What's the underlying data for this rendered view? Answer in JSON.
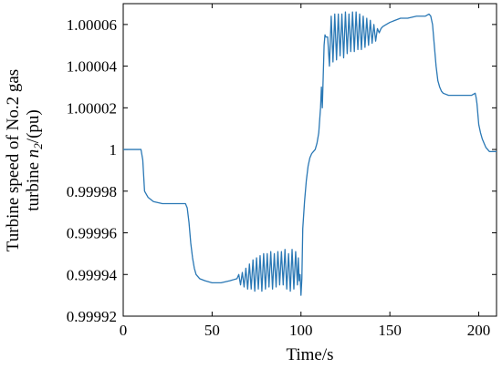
{
  "chart_data": {
    "type": "line",
    "xlabel": "Time/s",
    "ylabel_line1": "Turbine speed of No.2 gas",
    "ylabel_line2_prefix": "turbine ",
    "ylabel_var": "n",
    "ylabel_sub": "2",
    "ylabel_suffix": "/(pu)",
    "xlim": [
      0,
      210
    ],
    "ylim": [
      0.99992,
      1.00007
    ],
    "xticks": [
      0,
      50,
      100,
      150,
      200
    ],
    "xtick_labels": [
      "0",
      "50",
      "100",
      "150",
      "200"
    ],
    "yticks": [
      0.99992,
      0.99994,
      0.99996,
      0.99998,
      1.0,
      1.00002,
      1.00004,
      1.00006
    ],
    "ytick_labels": [
      "0.99992",
      "0.99994",
      "0.99996",
      "0.99998",
      "1",
      "1.00002",
      "1.00004",
      "1.00006"
    ],
    "grid": false,
    "line_color": "#2a78b5",
    "series": [
      {
        "x": [
          0,
          10,
          11,
          12,
          14,
          17,
          22,
          30,
          35,
          36,
          37,
          38,
          39,
          40,
          41,
          43,
          46,
          50,
          55,
          60,
          64,
          65,
          66,
          67,
          68,
          69,
          70,
          71,
          72,
          73,
          74,
          75,
          76,
          77,
          78,
          79,
          80,
          81,
          82,
          83,
          84,
          85,
          86,
          87,
          88,
          89,
          90,
          91,
          92,
          93,
          94,
          95,
          96,
          97,
          98,
          98.5,
          99,
          99.5,
          100,
          100.5,
          101,
          102,
          103,
          104,
          105,
          106,
          107,
          108,
          109,
          110,
          111,
          111.5,
          112,
          112.5,
          113,
          113.5,
          114,
          115,
          116,
          117,
          118,
          119,
          120,
          121,
          122,
          123,
          124,
          125,
          126,
          127,
          128,
          129,
          130,
          131,
          132,
          133,
          134,
          135,
          136,
          137,
          138,
          139,
          140,
          141,
          142,
          143,
          144,
          145,
          146,
          148,
          150,
          153,
          156,
          160,
          165,
          170,
          172,
          173,
          174,
          175,
          176,
          177,
          178,
          179,
          180,
          183,
          187,
          192,
          196,
          198,
          198.5,
          199,
          199.5,
          200,
          201,
          202,
          203,
          204,
          205,
          206,
          207,
          208,
          209,
          210
        ],
        "y": [
          1.0,
          1.0,
          0.999995,
          0.99998,
          0.999977,
          0.999975,
          0.999974,
          0.999974,
          0.999974,
          0.999972,
          0.999965,
          0.999955,
          0.999948,
          0.999943,
          0.99994,
          0.999938,
          0.999937,
          0.999936,
          0.999936,
          0.999937,
          0.999938,
          0.99994,
          0.999935,
          0.999941,
          0.999934,
          0.999943,
          0.999933,
          0.999945,
          0.999933,
          0.999947,
          0.999932,
          0.999948,
          0.999933,
          0.999949,
          0.999932,
          0.99995,
          0.999933,
          0.99995,
          0.999934,
          0.999951,
          0.999933,
          0.99995,
          0.999934,
          0.999951,
          0.999935,
          0.999951,
          0.999935,
          0.999952,
          0.999933,
          0.99995,
          0.999932,
          0.999952,
          0.999933,
          0.999951,
          0.999935,
          0.999948,
          0.999937,
          0.99994,
          0.99993,
          0.999938,
          0.999962,
          0.999975,
          0.999985,
          0.999992,
          0.999996,
          0.999998,
          0.999999,
          1.0,
          1.000003,
          1.000008,
          1.00002,
          1.00003,
          1.00002,
          1.000035,
          1.00005,
          1.000055,
          1.000054,
          1.000054,
          1.00004,
          1.000064,
          1.000042,
          1.000065,
          1.000043,
          1.000065,
          1.000045,
          1.000065,
          1.000044,
          1.000066,
          1.000046,
          1.000065,
          1.000047,
          1.000066,
          1.000047,
          1.000066,
          1.000048,
          1.000065,
          1.000048,
          1.000064,
          1.000049,
          1.000063,
          1.00005,
          1.000062,
          1.000051,
          1.00006,
          1.000052,
          1.000058,
          1.000056,
          1.000058,
          1.000059,
          1.00006,
          1.000061,
          1.000062,
          1.000063,
          1.000063,
          1.000064,
          1.000064,
          1.000065,
          1.000064,
          1.00006,
          1.00005,
          1.00004,
          1.000033,
          1.00003,
          1.000028,
          1.000027,
          1.000026,
          1.000026,
          1.000026,
          1.000026,
          1.000027,
          1.000025,
          1.000022,
          1.000017,
          1.000012,
          1.000008,
          1.000005,
          1.000003,
          1.000001,
          1.0,
          0.999999,
          0.999999,
          0.999999,
          0.999999,
          0.999999
        ]
      }
    ]
  }
}
